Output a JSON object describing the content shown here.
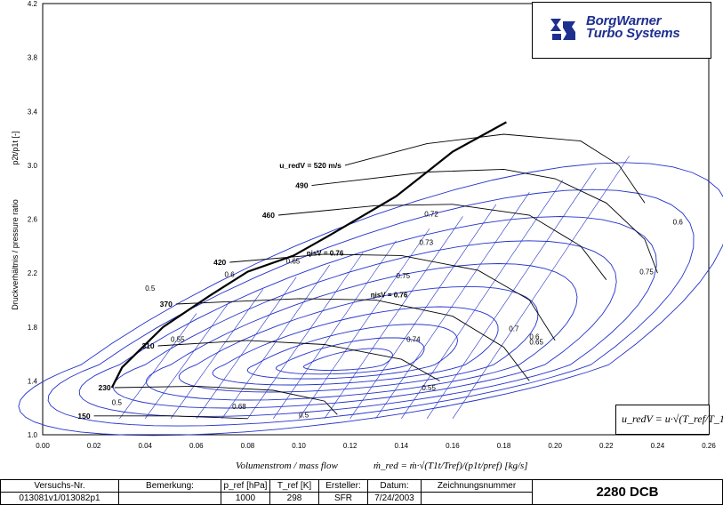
{
  "chart_data": {
    "type": "line",
    "title": "",
    "xlabel": "Volumenstrom / mass flow",
    "ylabel": "Druckverhältnis / pressure ratio",
    "ylabel_symbol": "p2t/p1t [-]",
    "xlim": [
      0.0,
      0.26
    ],
    "ylim": [
      1.0,
      4.2
    ],
    "x_ticks": [
      "0.00",
      "0.02",
      "0.04",
      "0.06",
      "0.08",
      "0.10",
      "0.12",
      "0.14",
      "0.16",
      "0.18",
      "0.20",
      "0.22",
      "0.24",
      "0.26"
    ],
    "y_ticks": [
      "1.0",
      "1.4",
      "1.8",
      "2.2",
      "2.6",
      "3.0",
      "3.4",
      "3.8",
      "4.2"
    ],
    "grid": true,
    "speed_lines": [
      {
        "label": "150",
        "points": [
          [
            0.02,
            1.14
          ],
          [
            0.05,
            1.14
          ],
          [
            0.08,
            1.12
          ]
        ]
      },
      {
        "label": "230",
        "points": [
          [
            0.028,
            1.35
          ],
          [
            0.06,
            1.36
          ],
          [
            0.09,
            1.33
          ],
          [
            0.11,
            1.25
          ],
          [
            0.115,
            1.15
          ]
        ]
      },
      {
        "label": "310",
        "points": [
          [
            0.045,
            1.66
          ],
          [
            0.08,
            1.7
          ],
          [
            0.11,
            1.67
          ],
          [
            0.14,
            1.56
          ],
          [
            0.155,
            1.4
          ]
        ]
      },
      {
        "label": "370",
        "points": [
          [
            0.052,
            1.97
          ],
          [
            0.1,
            2.01
          ],
          [
            0.13,
            2.0
          ],
          [
            0.16,
            1.88
          ],
          [
            0.18,
            1.65
          ],
          [
            0.19,
            1.4
          ]
        ]
      },
      {
        "label": "420",
        "points": [
          [
            0.073,
            2.28
          ],
          [
            0.11,
            2.34
          ],
          [
            0.14,
            2.33
          ],
          [
            0.17,
            2.22
          ],
          [
            0.19,
            2.0
          ],
          [
            0.2,
            1.7
          ]
        ]
      },
      {
        "label": "460",
        "points": [
          [
            0.092,
            2.63
          ],
          [
            0.13,
            2.7
          ],
          [
            0.16,
            2.71
          ],
          [
            0.19,
            2.63
          ],
          [
            0.21,
            2.4
          ],
          [
            0.22,
            2.15
          ]
        ]
      },
      {
        "label": "490",
        "points": [
          [
            0.105,
            2.85
          ],
          [
            0.15,
            2.95
          ],
          [
            0.18,
            2.97
          ],
          [
            0.2,
            2.9
          ],
          [
            0.22,
            2.72
          ],
          [
            0.235,
            2.45
          ],
          [
            0.24,
            2.2
          ]
        ]
      },
      {
        "label": "u_redV = 520 m/s",
        "points": [
          [
            0.118,
            3.0
          ],
          [
            0.15,
            3.16
          ],
          [
            0.18,
            3.23
          ],
          [
            0.21,
            3.18
          ],
          [
            0.225,
            3.0
          ],
          [
            0.235,
            2.72
          ]
        ]
      }
    ],
    "surge_line": [
      [
        0.027,
        1.35
      ],
      [
        0.031,
        1.5
      ],
      [
        0.047,
        1.8
      ],
      [
        0.065,
        2.03
      ],
      [
        0.08,
        2.21
      ],
      [
        0.098,
        2.33
      ],
      [
        0.112,
        2.48
      ],
      [
        0.138,
        2.77
      ],
      [
        0.15,
        2.95
      ],
      [
        0.16,
        3.1
      ],
      [
        0.181,
        3.32
      ]
    ],
    "efficiency_labels": [
      "0.5",
      "0.55",
      "0.6",
      "0.65",
      "0.68",
      "0.7",
      "0.72",
      "0.73",
      "0.74",
      "0.75",
      "0.76"
    ],
    "eta_label": "ηisV = 0.76",
    "annotations": [
      "0.5",
      "0.55",
      "0.6",
      "0.65",
      "0.72",
      "0.73",
      "0.75",
      "0.74",
      "0.68",
      "0.7",
      "0.6",
      "0.75",
      "0.55",
      "0.5"
    ]
  },
  "logo": {
    "line1": "BorgWarner",
    "line2": "Turbo Systems"
  },
  "formula": "u_redV = u·√(T_ref/T_1t)",
  "x_axis_formula": "ṁ_red = ṁ·√(T1t/Tref)/(p1t/pref)  [kg/s]",
  "footer": {
    "h_versuch": "Versuchs-Nr.",
    "h_bemerkung": "Bemerkung:",
    "h_pref": "p_ref [hPa]",
    "h_tref": "T_ref [K]",
    "h_ersteller": "Ersteller:",
    "h_datum": "Datum:",
    "h_zeichnung": "Zeichnungsnummer",
    "v_versuch": "013081v1/013082p1",
    "v_bemerkung": "",
    "v_pref": "1000",
    "v_tref": "298",
    "v_ersteller": "SFR",
    "v_datum": "7/24/2003",
    "v_zeichnung": "2280 DCB"
  }
}
